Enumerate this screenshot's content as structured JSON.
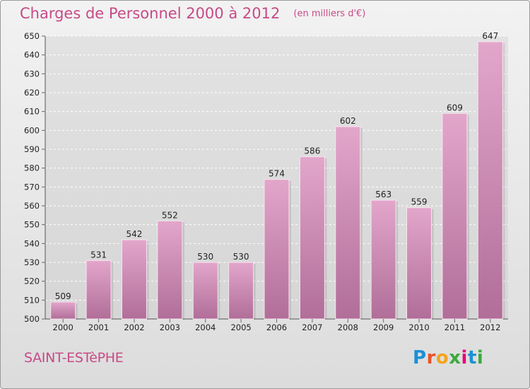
{
  "title": "Charges de Personnel 2000 à 2012",
  "unit": "(en milliers d'€)",
  "commune": "SAINT-ESTèPHE",
  "logo": {
    "letters": [
      "P",
      "r",
      "o",
      "x",
      "i",
      "t",
      "i"
    ]
  },
  "colors": {
    "title": "#c74a87",
    "bar_top": "#e3a6cb",
    "bar_bottom": "#b06e98"
  },
  "chart_data": {
    "type": "bar",
    "title": "Charges de Personnel 2000 à 2012",
    "ylabel": "",
    "xlabel": "",
    "categories": [
      "2000",
      "2001",
      "2002",
      "2003",
      "2004",
      "2005",
      "2006",
      "2007",
      "2008",
      "2009",
      "2010",
      "2011",
      "2012"
    ],
    "values": [
      509,
      531,
      542,
      552,
      530,
      530,
      574,
      586,
      602,
      563,
      559,
      609,
      647
    ],
    "ylim": [
      500,
      650
    ],
    "yticks": [
      500,
      510,
      520,
      530,
      540,
      550,
      560,
      570,
      580,
      590,
      600,
      610,
      620,
      630,
      640,
      650
    ],
    "grid": true,
    "legend": "none"
  }
}
